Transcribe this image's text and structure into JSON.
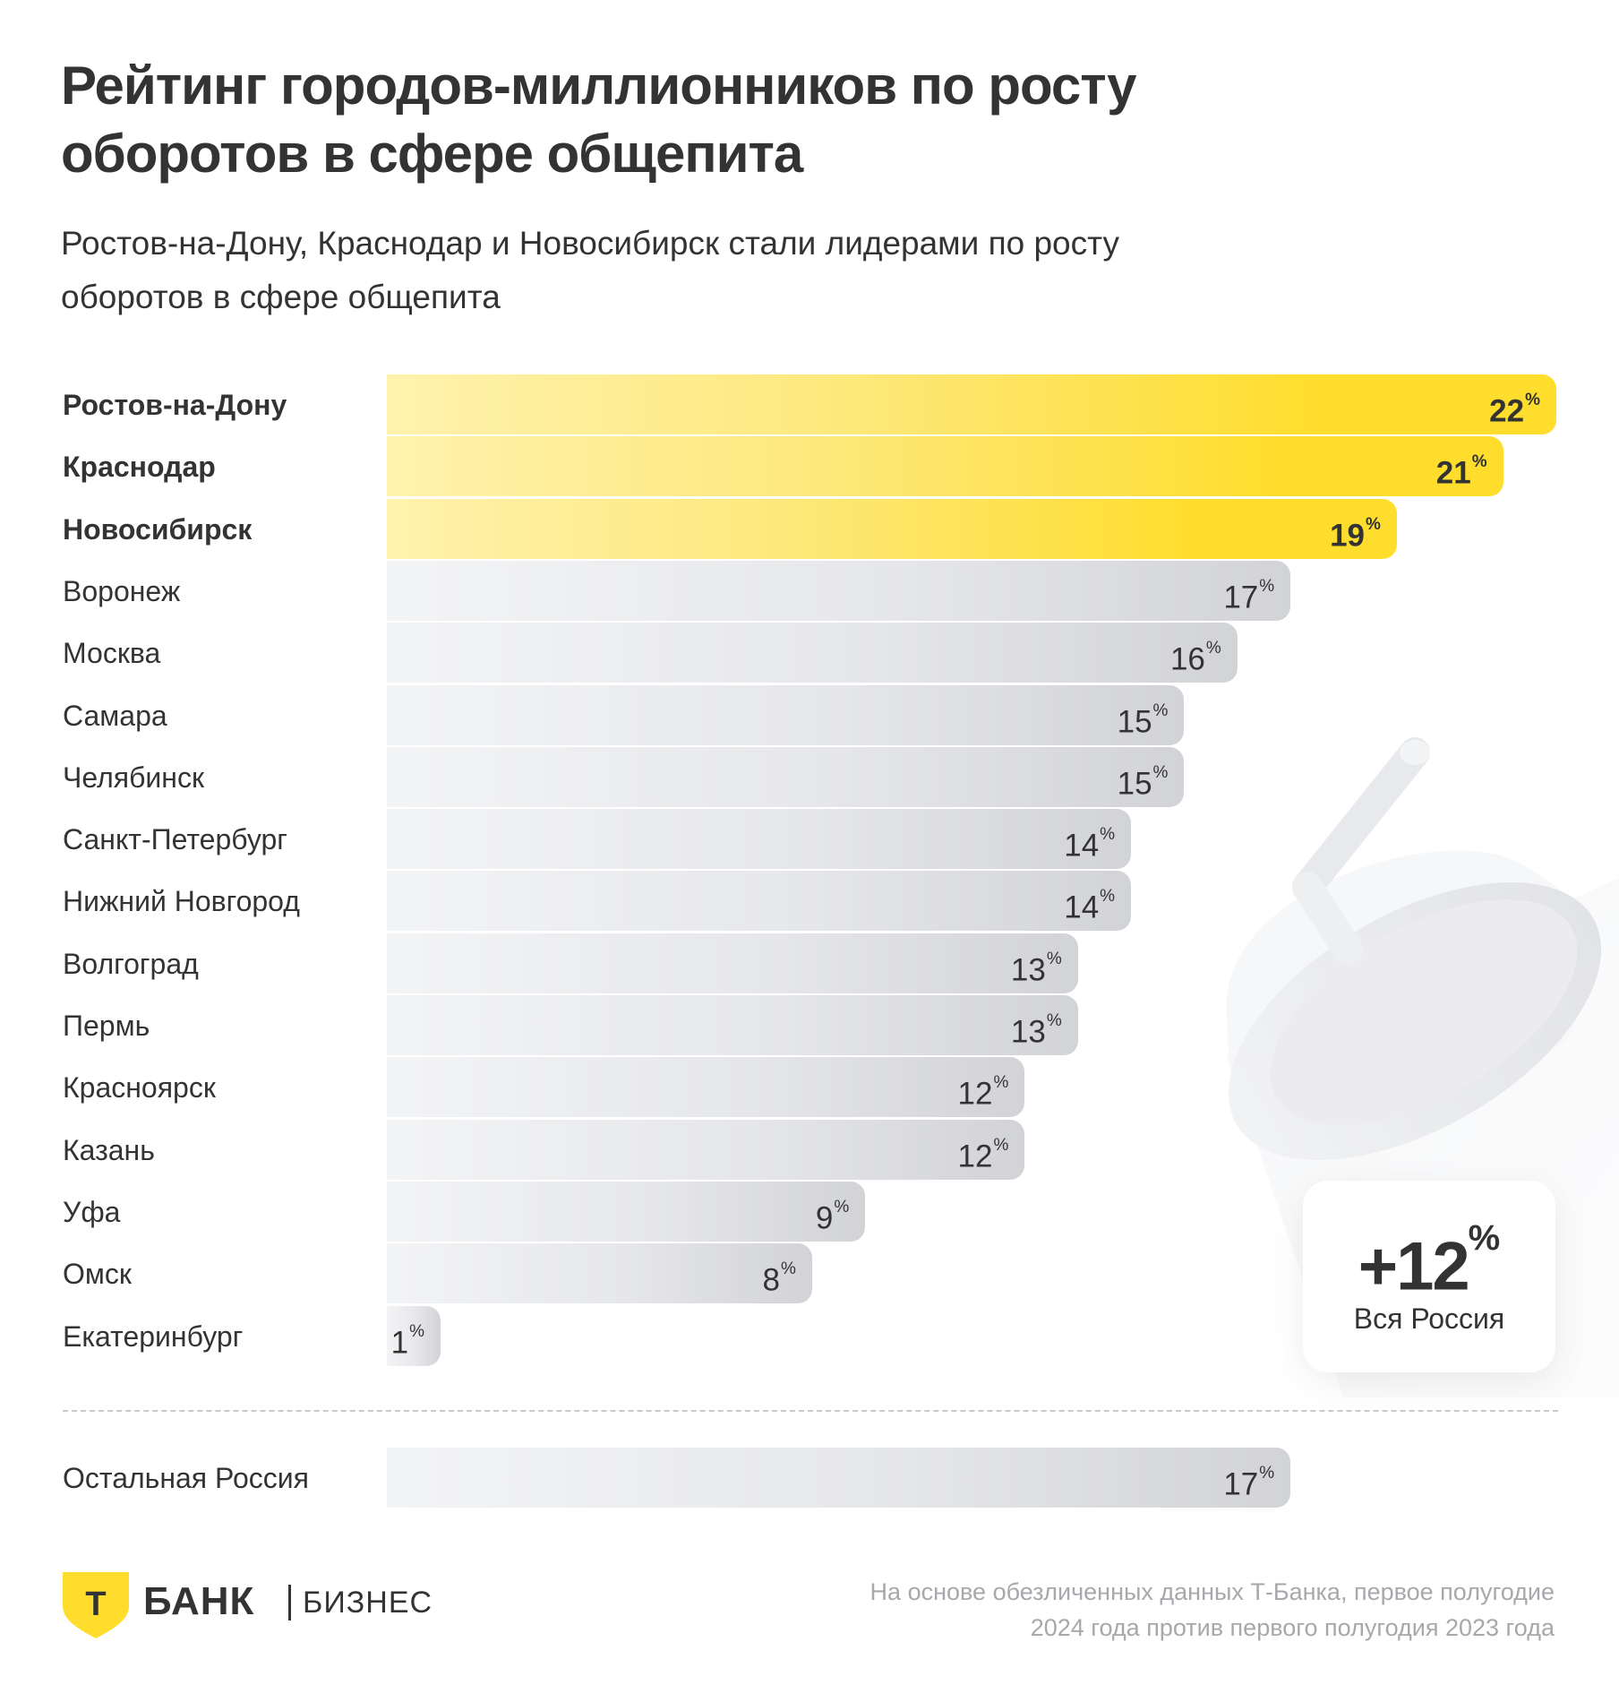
{
  "header": {
    "title_line1": "Рейтинг городов-миллионников по росту",
    "title_line2": "оборотов в сфере общепита",
    "subtitle_line1": "Ростов-на-Дону, Краснодар и Новосибирск стали лидерами по росту",
    "subtitle_line2": "оборотов в сфере общепита"
  },
  "chart_data": {
    "type": "bar",
    "orientation": "horizontal",
    "title": "Рейтинг городов-миллионников по росту оборотов в сфере общепита",
    "subtitle": "Ростов-на-Дону, Краснодар и Новосибирск стали лидерами по росту оборотов в сфере общепита",
    "unit": "%",
    "categories": [
      "Ростов-на-Дону",
      "Краснодар",
      "Новосибирск",
      "Воронеж",
      "Москва",
      "Самара",
      "Челябинск",
      "Санкт-Петербург",
      "Нижний Новгород",
      "Волгоград",
      "Пермь",
      "Красноярск",
      "Казань",
      "Уфа",
      "Омск",
      "Екатеринбург"
    ],
    "values": [
      22,
      21,
      19,
      17,
      16,
      15,
      15,
      14,
      14,
      13,
      13,
      12,
      12,
      9,
      8,
      1
    ],
    "highlighted": [
      "Ростов-на-Дону",
      "Краснодар",
      "Новосибирск"
    ],
    "reference": {
      "category": "Остальная Россия",
      "value": 17
    },
    "summary": {
      "value_prefix": "+",
      "value": 12,
      "unit": "%",
      "label": "Вся Россия"
    },
    "xlim": [
      0,
      22
    ],
    "grid": false,
    "legend": "none",
    "colors": {
      "highlight": "#FFDD2D",
      "highlight_light": "#FFF2AD",
      "default": "#D2D3D7",
      "default_light": "#F3F4F6",
      "text": "#333333"
    }
  },
  "summary_card": {
    "prefix": "+",
    "value": "12",
    "unit": "%",
    "label": "Вся Россия"
  },
  "footer": {
    "logo_bank": "БАНК",
    "logo_letter": "Т",
    "logo_business": "БИЗНЕС",
    "note_line1": "На основе обезличенных данных Т-Банка, первое полугодие",
    "note_line2": "2024 года против первого полугодия 2023 года"
  }
}
